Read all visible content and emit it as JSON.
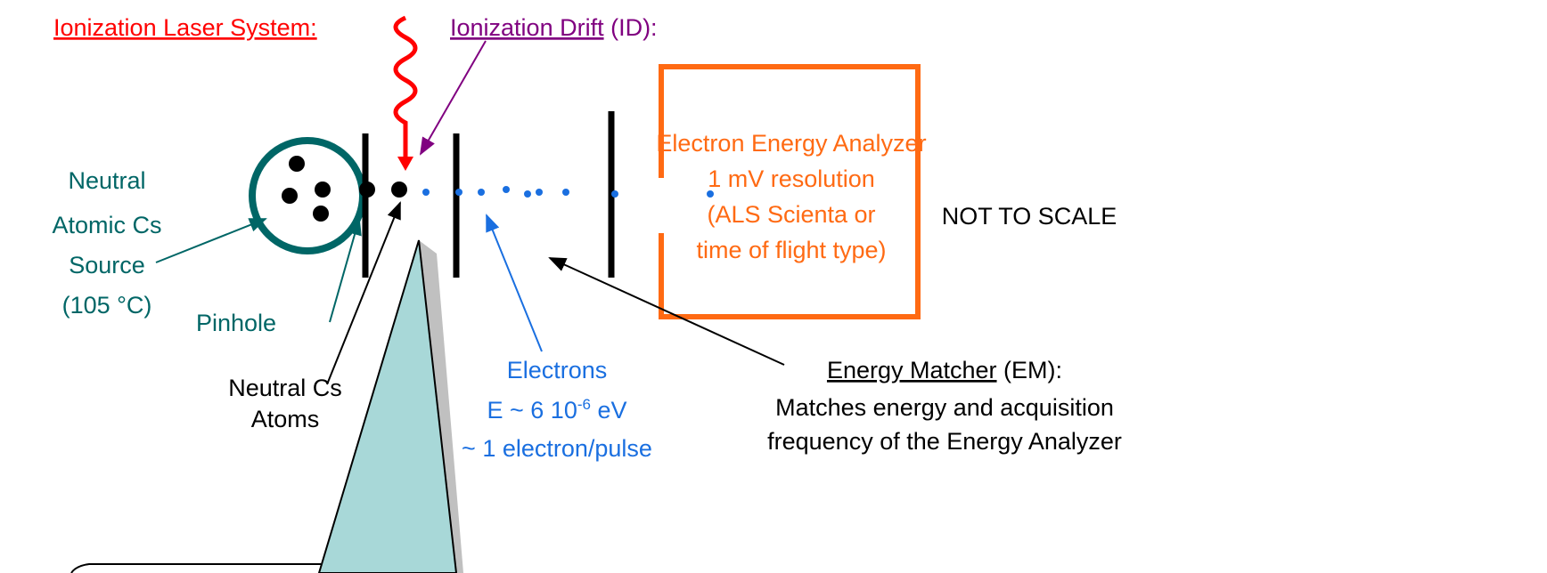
{
  "laser": {
    "label": "Ionization Laser System:"
  },
  "drift": {
    "label": "Ionization Drift",
    "suffix": " (ID):"
  },
  "source": {
    "lines": [
      "Neutral",
      "Atomic Cs",
      "Source",
      "(105 °C)"
    ]
  },
  "pinhole": {
    "label": "Pinhole"
  },
  "atoms": {
    "lines": [
      "Neutral Cs",
      "Atoms"
    ]
  },
  "electrons": {
    "title": "Electrons",
    "energy": {
      "prefix": "E ~ 6 10",
      "exponent": "-6",
      "suffix": " eV"
    },
    "rate": "~ 1 electron/pulse"
  },
  "analyzer": {
    "lines": [
      "Electron Energy Analyzer",
      "1 mV resolution",
      "(ALS Scienta or",
      "time of flight type)"
    ]
  },
  "note": "NOT TO SCALE",
  "matcher": {
    "label": "Energy Matcher",
    "suffix": " (EM):",
    "lines": [
      "Matches energy and acquisition",
      "frequency of the Energy Analyzer"
    ]
  }
}
